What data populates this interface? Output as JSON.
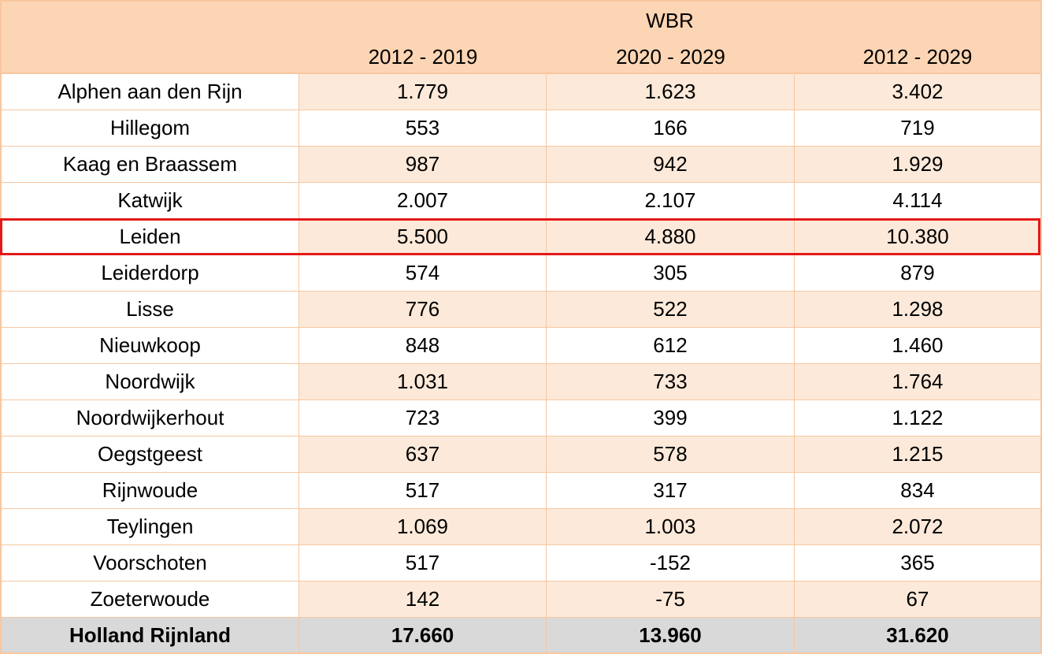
{
  "header": {
    "group_label": "WBR",
    "periods": [
      "2012 - 2019",
      "2020 - 2029",
      "2012 - 2029"
    ]
  },
  "rows": [
    {
      "name": "Alphen aan den Rijn",
      "values": [
        "1.779",
        "1.623",
        "3.402"
      ]
    },
    {
      "name": "Hillegom",
      "values": [
        "553",
        "166",
        "719"
      ]
    },
    {
      "name": "Kaag en Braassem",
      "values": [
        "987",
        "942",
        "1.929"
      ]
    },
    {
      "name": "Katwijk",
      "values": [
        "2.007",
        "2.107",
        "4.114"
      ]
    },
    {
      "name": "Leiden",
      "values": [
        "5.500",
        "4.880",
        "10.380"
      ]
    },
    {
      "name": "Leiderdorp",
      "values": [
        "574",
        "305",
        "879"
      ]
    },
    {
      "name": "Lisse",
      "values": [
        "776",
        "522",
        "1.298"
      ]
    },
    {
      "name": "Nieuwkoop",
      "values": [
        "848",
        "612",
        "1.460"
      ]
    },
    {
      "name": "Noordwijk",
      "values": [
        "1.031",
        "733",
        "1.764"
      ]
    },
    {
      "name": "Noordwijkerhout",
      "values": [
        "723",
        "399",
        "1.122"
      ]
    },
    {
      "name": "Oegstgeest",
      "values": [
        "637",
        "578",
        "1.215"
      ]
    },
    {
      "name": "Rijnwoude",
      "values": [
        "517",
        "317",
        "834"
      ]
    },
    {
      "name": "Teylingen",
      "values": [
        "1.069",
        "1.003",
        "2.072"
      ]
    },
    {
      "name": "Voorschoten",
      "values": [
        "517",
        "-152",
        "365"
      ]
    },
    {
      "name": "Zoeterwoude",
      "values": [
        "142",
        "-75",
        "67"
      ]
    }
  ],
  "total": {
    "name": "Holland Rijnland",
    "values": [
      "17.660",
      "13.960",
      "31.620"
    ]
  },
  "highlighted_row": "Leiden",
  "colors": {
    "header_fill": "#fcd5b4",
    "band_fill": "#fde9d9",
    "total_fill": "#d9d9d9",
    "highlight_border": "#e31919",
    "grid": "#f7c7a0"
  }
}
